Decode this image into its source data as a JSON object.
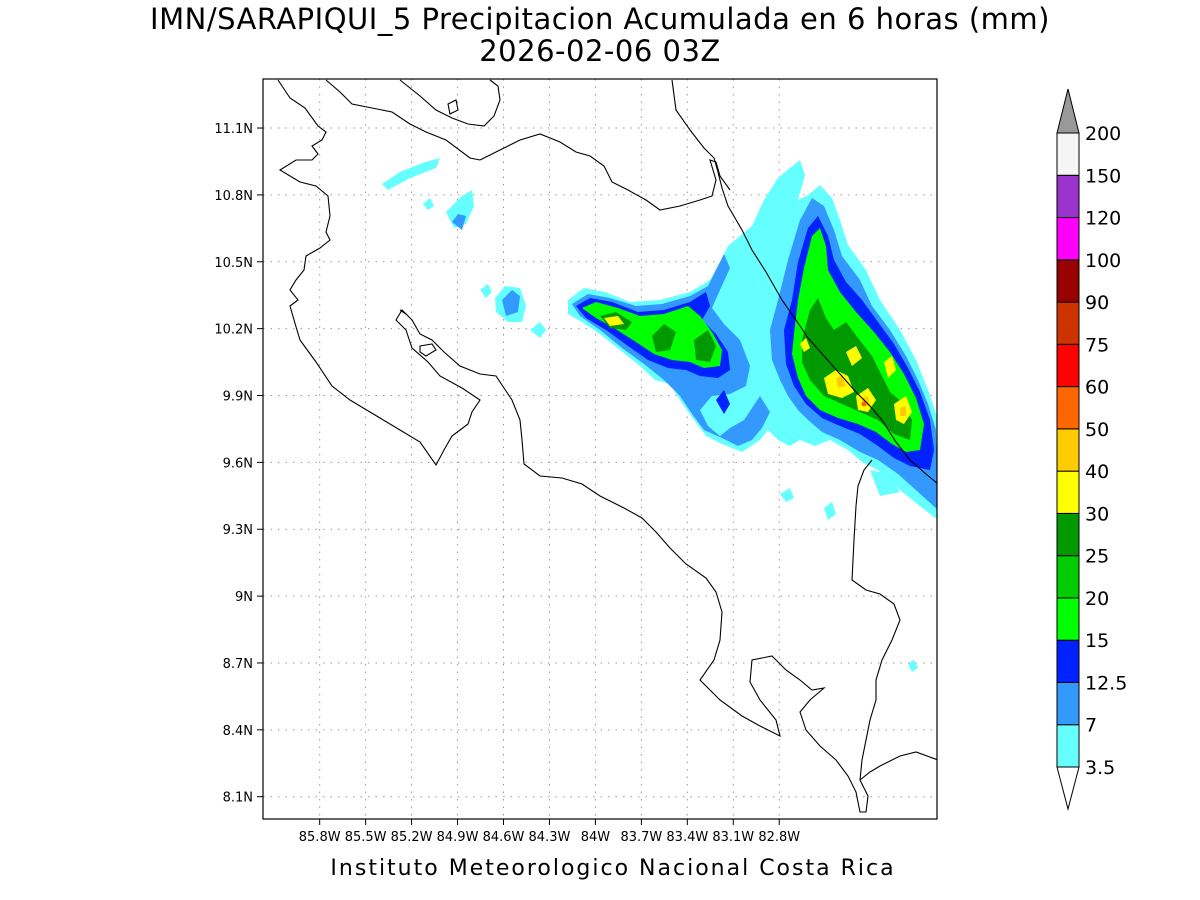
{
  "header": {
    "title": "IMN/SARAPIQUI_5 Precipitacion Acumulada en 6 horas (mm)",
    "datetime": "2026-02-06 03Z"
  },
  "footer": {
    "credit": "Instituto Meteorologico Nacional Costa Rica"
  },
  "map": {
    "lon_range": [
      -86.17,
      -81.77
    ],
    "lat_range": [
      8.0,
      11.32
    ],
    "lat_ticks": [
      {
        "value": 11.1,
        "label": "11.1N"
      },
      {
        "value": 10.8,
        "label": "10.8N"
      },
      {
        "value": 10.5,
        "label": "10.5N"
      },
      {
        "value": 10.2,
        "label": "10.2N"
      },
      {
        "value": 9.9,
        "label": "9.9N"
      },
      {
        "value": 9.6,
        "label": "9.6N"
      },
      {
        "value": 9.3,
        "label": "9.3N"
      },
      {
        "value": 9.0,
        "label": "9N"
      },
      {
        "value": 8.7,
        "label": "8.7N"
      },
      {
        "value": 8.4,
        "label": "8.4N"
      },
      {
        "value": 8.1,
        "label": "8.1N"
      }
    ],
    "lon_ticks": [
      {
        "value": -85.8,
        "label": "85.8W"
      },
      {
        "value": -85.5,
        "label": "85.5W"
      },
      {
        "value": -85.2,
        "label": "85.2W"
      },
      {
        "value": -84.9,
        "label": "84.9W"
      },
      {
        "value": -84.6,
        "label": "84.6W"
      },
      {
        "value": -84.3,
        "label": "84.3W"
      },
      {
        "value": -84.0,
        "label": "84W"
      },
      {
        "value": -83.7,
        "label": "83.7W"
      },
      {
        "value": -83.4,
        "label": "83.4W"
      },
      {
        "value": -83.1,
        "label": "83.1W"
      },
      {
        "value": -82.8,
        "label": "82.8W"
      }
    ],
    "grid": true
  },
  "colorbar": {
    "levels": [
      "3.5",
      "7",
      "12.5",
      "15",
      "20",
      "25",
      "30",
      "40",
      "50",
      "60",
      "75",
      "90",
      "100",
      "120",
      "150",
      "200"
    ],
    "colors": [
      "#66ffff",
      "#3399ff",
      "#0022ff",
      "#00ff00",
      "#00cc00",
      "#009900",
      "#ffff00",
      "#ffcc00",
      "#ff6600",
      "#ff0000",
      "#cc3300",
      "#990000",
      "#ff00ff",
      "#9933cc",
      "#f5f5f5"
    ],
    "over_color": "#999999",
    "under_color": "#ffffff"
  }
}
